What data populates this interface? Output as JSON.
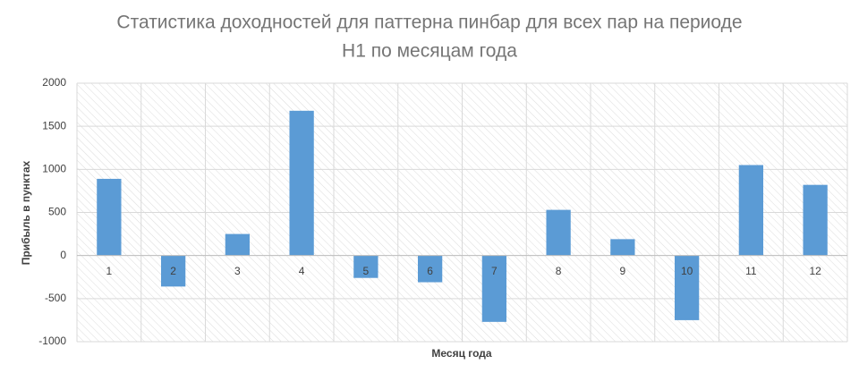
{
  "chart_data": {
    "type": "bar",
    "title": [
      "Статистика доходностей для паттерна пинбар для всех пар на периоде",
      "H1 по месяцам года"
    ],
    "x_label": "Месяц года",
    "y_label": "Прибыль в пунктах",
    "categories": [
      "1",
      "2",
      "3",
      "4",
      "5",
      "6",
      "7",
      "8",
      "9",
      "10",
      "11",
      "12"
    ],
    "values": [
      890,
      -360,
      250,
      1680,
      -260,
      -310,
      -770,
      530,
      190,
      -750,
      1050,
      820
    ],
    "color": "#5b9bd5",
    "ylim": [
      -1000,
      2000
    ],
    "yticks": [
      -1000,
      -500,
      0,
      500,
      1000,
      1500,
      2000
    ],
    "grid": true
  }
}
